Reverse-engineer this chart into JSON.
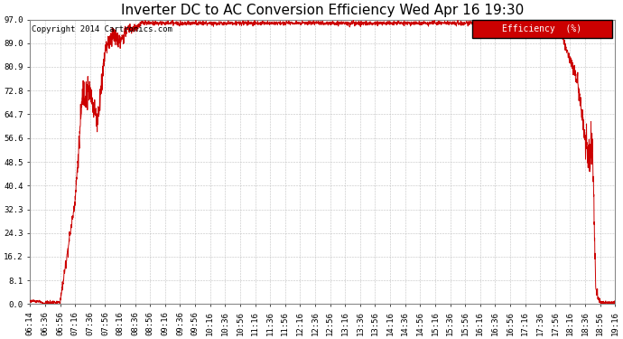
{
  "title": "Inverter DC to AC Conversion Efficiency Wed Apr 16 19:30",
  "copyright": "Copyright 2014 Cartronics.com",
  "legend_label": "Efficiency  (%)",
  "legend_bg": "#cc0000",
  "legend_text_color": "#ffffff",
  "line_color": "#cc0000",
  "bg_color": "#ffffff",
  "plot_bg_color": "#ffffff",
  "grid_color": "#bbbbbb",
  "yticks": [
    0.0,
    8.1,
    16.2,
    24.3,
    32.3,
    40.4,
    48.5,
    56.6,
    64.7,
    72.8,
    80.9,
    89.0,
    97.0
  ],
  "xtick_labels": [
    "06:14",
    "06:36",
    "06:56",
    "07:16",
    "07:36",
    "07:56",
    "08:16",
    "08:36",
    "08:56",
    "09:16",
    "09:36",
    "09:56",
    "10:16",
    "10:36",
    "10:56",
    "11:16",
    "11:36",
    "11:56",
    "12:16",
    "12:36",
    "12:56",
    "13:16",
    "13:36",
    "13:56",
    "14:16",
    "14:36",
    "14:56",
    "15:16",
    "15:36",
    "15:56",
    "16:16",
    "16:36",
    "16:56",
    "17:16",
    "17:36",
    "17:56",
    "18:16",
    "18:36",
    "18:56",
    "19:16"
  ],
  "xmin": 0,
  "xmax": 39,
  "ymin": 0.0,
  "ymax": 97.0,
  "title_fontsize": 11,
  "axis_fontsize": 6.5,
  "copyright_fontsize": 6.5
}
